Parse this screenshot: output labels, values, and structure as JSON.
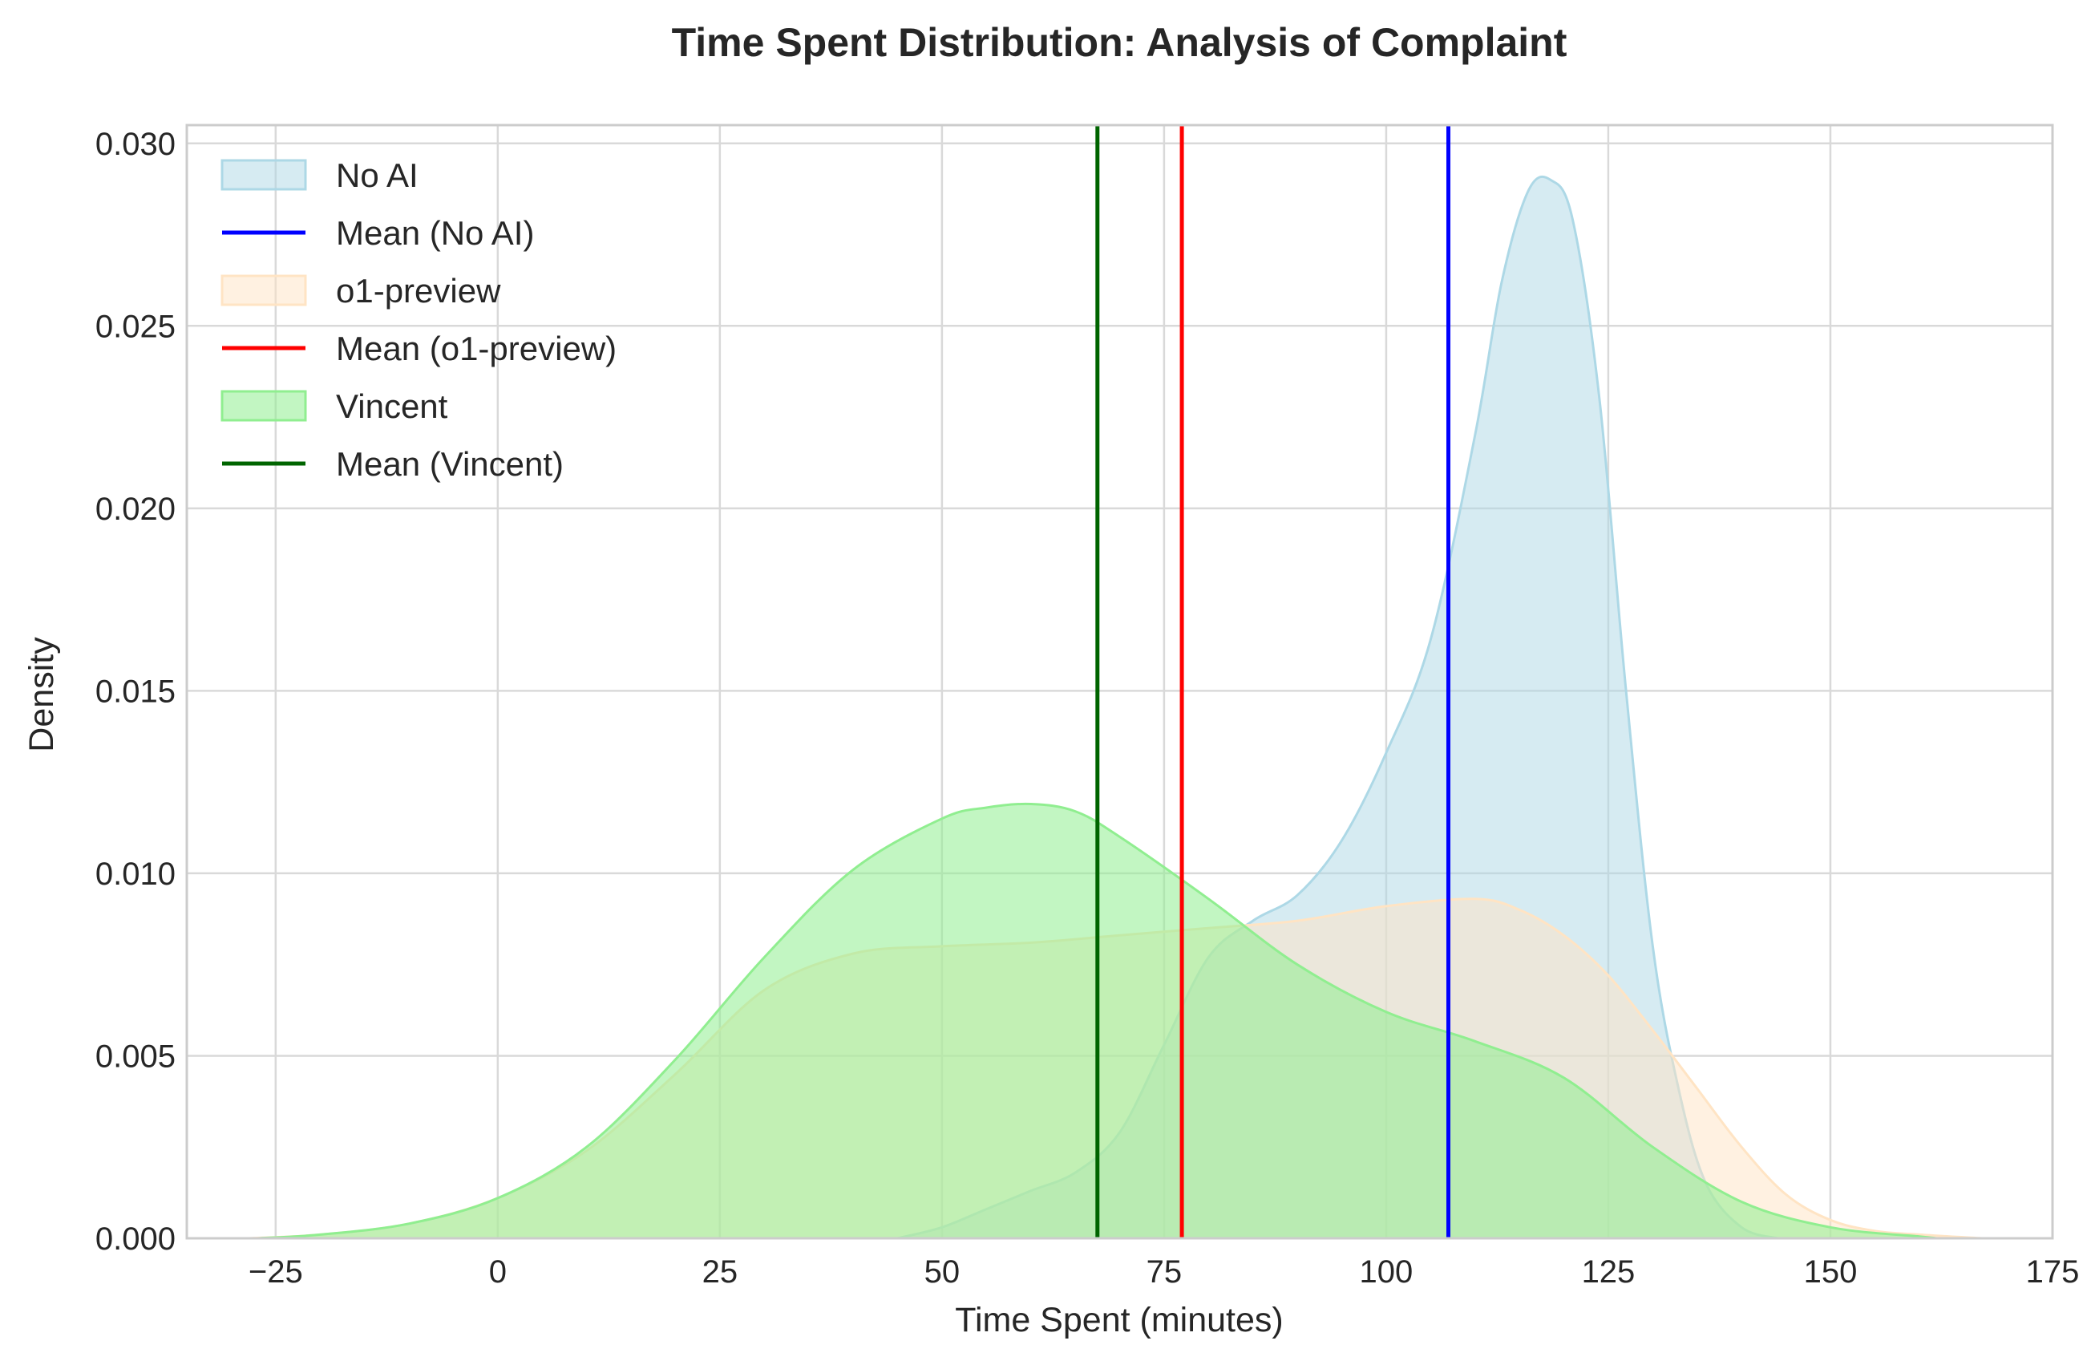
{
  "chart_data": {
    "type": "area",
    "title": "Time Spent Distribution: Analysis of Complaint",
    "xlabel": "Time Spent (minutes)",
    "ylabel": "Density",
    "xlim": [
      -35,
      175
    ],
    "ylim": [
      0,
      0.0305
    ],
    "x_ticks": [
      -25,
      0,
      25,
      50,
      75,
      100,
      125,
      150,
      175
    ],
    "x_tick_labels": [
      "−25",
      "0",
      "25",
      "50",
      "75",
      "100",
      "125",
      "150",
      "175"
    ],
    "y_ticks": [
      0.0,
      0.005,
      0.01,
      0.015,
      0.02,
      0.025,
      0.03
    ],
    "y_tick_labels": [
      "0.000",
      "0.005",
      "0.010",
      "0.015",
      "0.020",
      "0.025",
      "0.030"
    ],
    "grid": true,
    "legend_position": "top-left",
    "series": [
      {
        "name": "No AI",
        "kind": "density",
        "fill": "#add8e6",
        "fill_opacity": 0.5,
        "stroke": "#add8e6",
        "x": [
          45,
          50,
          55,
          60,
          65,
          70,
          75,
          80,
          85,
          90,
          95,
          100,
          105,
          110,
          113,
          116,
          118.5,
          121,
          124,
          127,
          130,
          133,
          136,
          140,
          144
        ],
        "y": [
          0,
          0.0003,
          0.0008,
          0.0013,
          0.0018,
          0.0029,
          0.0053,
          0.0077,
          0.0087,
          0.0094,
          0.0109,
          0.0133,
          0.0164,
          0.022,
          0.0262,
          0.0287,
          0.029,
          0.0279,
          0.023,
          0.015,
          0.008,
          0.004,
          0.0015,
          0.0003,
          0
        ]
      },
      {
        "name": "Mean (No AI)",
        "kind": "vline",
        "x": 107,
        "stroke": "#0000ff"
      },
      {
        "name": "o1-preview",
        "kind": "density",
        "fill": "#ffe4c4",
        "fill_opacity": 0.5,
        "stroke": "#ffe4c4",
        "x": [
          -28,
          -20,
          -10,
          0,
          10,
          20,
          30,
          40,
          50,
          60,
          70,
          80,
          90,
          100,
          110,
          115,
          120,
          125,
          130,
          135,
          140,
          145,
          150,
          155,
          160,
          167
        ],
        "y": [
          0,
          0.0001,
          0.0004,
          0.0011,
          0.0024,
          0.0045,
          0.0068,
          0.0078,
          0.008,
          0.0081,
          0.0083,
          0.0085,
          0.0087,
          0.0091,
          0.0093,
          0.009,
          0.0083,
          0.0072,
          0.0057,
          0.0041,
          0.0025,
          0.0012,
          0.0005,
          0.0002,
          0.0001,
          0
        ]
      },
      {
        "name": "Mean (o1-preview)",
        "kind": "vline",
        "x": 77,
        "stroke": "#ff0000"
      },
      {
        "name": "Vincent",
        "kind": "density",
        "fill": "#90ee90",
        "fill_opacity": 0.55,
        "stroke": "#90ee90",
        "x": [
          -27,
          -20,
          -10,
          0,
          10,
          20,
          30,
          40,
          50,
          55,
          60,
          65,
          70,
          80,
          90,
          100,
          110,
          120,
          130,
          140,
          150,
          160,
          162
        ],
        "y": [
          0,
          0.0001,
          0.0004,
          0.0011,
          0.0025,
          0.0049,
          0.0077,
          0.0101,
          0.0115,
          0.0118,
          0.0119,
          0.0117,
          0.011,
          0.0093,
          0.0075,
          0.0062,
          0.0054,
          0.0044,
          0.0025,
          0.001,
          0.0003,
          5e-05,
          0
        ]
      },
      {
        "name": "Mean (Vincent)",
        "kind": "vline",
        "x": 67.5,
        "stroke": "#006400"
      }
    ]
  }
}
